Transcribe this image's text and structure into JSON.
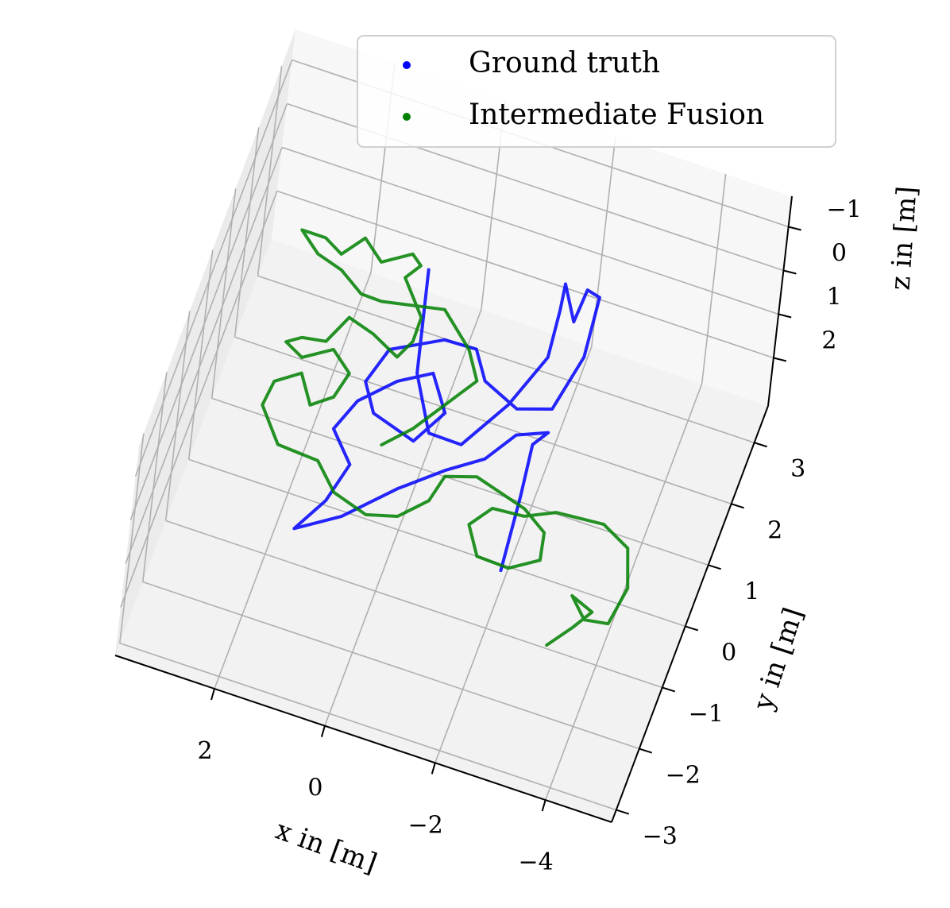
{
  "chart_data": {
    "type": "scatter3d",
    "xlabel": "x in [m]",
    "ylabel": "y in [m]",
    "zlabel": "z in [m]",
    "xlim": [
      3.8,
      -5.2
    ],
    "ylim": [
      -3.2,
      3.6
    ],
    "zlim": [
      3.1,
      -1.7
    ],
    "xticks": [
      2,
      0,
      {
        "value": -2,
        "label": "−2"
      },
      {
        "value": -4,
        "label": "−4"
      }
    ],
    "yticks": [
      {
        "value": -3,
        "label": "−3"
      },
      {
        "value": -2,
        "label": "−2"
      },
      {
        "value": -1,
        "label": "−1"
      },
      0,
      1,
      2,
      3
    ],
    "zticks": [
      {
        "value": -1,
        "label": "−1"
      },
      0,
      1,
      2
    ],
    "grid": true,
    "legend": "upper right",
    "series": [
      {
        "name": "Ground truth",
        "color": "#0000ff",
        "x": [
          -2.28,
          -2.15,
          -2.03,
          -2.21,
          -1.71,
          -1.35,
          -0.78,
          -0.12,
          0.61,
          1.3,
          0.96,
          0.79,
          1.27,
          1.05,
          0.53,
          0.0,
          -0.43,
          -0.09,
          0.72,
          1.04,
          0.85,
          0.02,
          -0.55,
          -0.88,
          -1.56,
          -2.13,
          -2.33,
          -2.22,
          -1.98,
          -1.95,
          -1.59,
          -1.66,
          -1.75,
          -1.4,
          -0.88,
          -0.29,
          0.26,
          0.7
        ],
        "y": [
          -1.47,
          -0.3,
          0.51,
          0.76,
          0.57,
          0.07,
          -0.29,
          -0.79,
          -1.46,
          -1.87,
          -1.31,
          -0.67,
          -0.23,
          0.29,
          0.77,
          1.06,
          0.54,
          -0.02,
          0.19,
          0.61,
          1.19,
          1.6,
          1.62,
          1.2,
          0.95,
          1.12,
          2.03,
          2.97,
          3.02,
          2.49,
          3.0,
          2.6,
          1.85,
          0.97,
          0.16,
          0.17,
          0.98,
          2.54
        ],
        "z": [
          1,
          1,
          1,
          1,
          1,
          1,
          1,
          1,
          1,
          1,
          1,
          1,
          1,
          1,
          1,
          1,
          1,
          1,
          1,
          1,
          1,
          1,
          1,
          1,
          1,
          1,
          1,
          1,
          1,
          1,
          1,
          1,
          1,
          1,
          1,
          1,
          1,
          1
        ]
      },
      {
        "name": "Intermediate Fusion",
        "color": "#008000",
        "x": [
          -3.47,
          -3.78,
          -4.0,
          -3.58,
          -3.92,
          -4.33,
          -4.43,
          -4.19,
          -3.66,
          -2.82,
          -2.33,
          -1.77,
          -1.49,
          -1.81,
          -2.39,
          -2.85,
          -2.75,
          -2.29,
          -1.33,
          -0.81,
          -0.7,
          -0.29,
          0.23,
          0.88,
          1.33,
          2.07,
          2.56,
          2.51,
          2.12,
          1.79,
          1.46,
          1.35,
          1.75,
          2.21,
          2.56,
          2.33,
          1.92,
          1.69,
          1.21,
          0.68,
          0.52,
          0.53,
          1.03,
          0.85,
          1.05,
          1.51,
          1.91,
          2.2,
          2.55,
          2.98,
          2.58,
          2.1,
          1.64,
          1.27,
          0.2,
          -0.43,
          -0.75,
          -0.38,
          -0.01,
          0.4
        ],
        "y": [
          -2.33,
          -1.95,
          -1.63,
          -1.49,
          -1.78,
          -1.72,
          -1.11,
          -0.53,
          -0.3,
          -0.36,
          -0.57,
          -0.61,
          -0.96,
          -1.38,
          -1.4,
          -1.13,
          -0.71,
          -0.46,
          -0.23,
          -0.38,
          -0.81,
          -1.19,
          -1.32,
          -1.15,
          -0.77,
          -0.73,
          -0.23,
          0.17,
          0.42,
          0.0,
          0.23,
          0.65,
          0.92,
          0.65,
          0.8,
          0.94,
          1.0,
          1.46,
          1.34,
          1.12,
          1.42,
          1.81,
          2.31,
          2.56,
          2.69,
          2.42,
          2.69,
          2.34,
          2.5,
          2.5,
          2.23,
          2.11,
          1.86,
          1.85,
          2.04,
          1.58,
          1.16,
          0.66,
          0.16,
          -0.23
        ],
        "z": [
          1,
          1,
          1,
          1,
          1,
          1,
          1,
          1,
          1,
          1,
          1,
          1,
          1,
          1,
          1,
          1,
          1,
          1,
          1,
          1,
          1,
          1,
          1,
          1,
          1,
          1,
          1,
          1,
          1,
          1,
          1,
          1,
          1,
          1,
          1,
          1,
          1,
          1,
          1,
          1,
          1,
          1,
          1,
          1,
          1,
          1,
          1,
          1,
          1,
          1,
          1,
          1,
          1,
          1,
          1,
          1,
          1,
          1,
          1,
          1
        ]
      }
    ]
  }
}
